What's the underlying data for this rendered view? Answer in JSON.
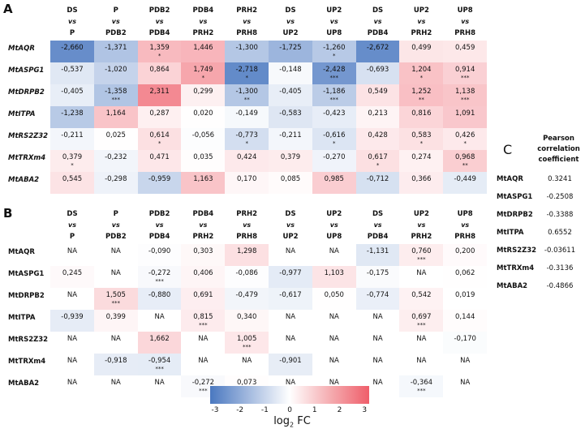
{
  "chart_data": [
    {
      "type": "heatmap",
      "panel": "A",
      "italic_rows": true,
      "columns": [
        [
          "DS",
          "vs",
          "P"
        ],
        [
          "P",
          "vs",
          "PDB2"
        ],
        [
          "PDB2",
          "vs",
          "PDB4"
        ],
        [
          "PDB4",
          "vs",
          "PRH2"
        ],
        [
          "PRH2",
          "vs",
          "PRH8"
        ],
        [
          "DS",
          "vs",
          "UP2"
        ],
        [
          "UP2",
          "vs",
          "UP8"
        ],
        [
          "DS",
          "vs",
          "PDB4"
        ],
        [
          "UP2",
          "vs",
          "PRH2"
        ],
        [
          "UP8",
          "vs",
          "PRH8"
        ]
      ],
      "rows": [
        "MtAQR",
        "MtASPG1",
        "MtDRPB2",
        "MtITPA",
        "MtRS2Z32",
        "MtTRXm4",
        "MtABA2"
      ],
      "values": [
        [
          "-2,660",
          "-1,371",
          "1,359",
          "1,446",
          "-1,300",
          "-1,725",
          "-1,260",
          "-2,672",
          "0,499",
          "0,459"
        ],
        [
          "-0,537",
          "-1,020",
          "0,864",
          "1,749",
          "-2,718",
          "-0,148",
          "-2,428",
          "-0,693",
          "1,204",
          "0,914"
        ],
        [
          "-0,405",
          "-1,358",
          "2,311",
          "0,299",
          "-1,300",
          "-0,405",
          "-1,186",
          "0,549",
          "1,252",
          "1,138"
        ],
        [
          "-1,238",
          "1,164",
          "0,287",
          "0,020",
          "-0,149",
          "-0,583",
          "-0,423",
          "0,213",
          "0,816",
          "1,091"
        ],
        [
          "-0,211",
          "0,025",
          "0,614",
          "-0,056",
          "-0,773",
          "-0,211",
          "-0,616",
          "0,428",
          "0,583",
          "0,426"
        ],
        [
          "0,379",
          "-0,232",
          "0,471",
          "0,035",
          "0,424",
          "0,379",
          "-0,270",
          "0,617",
          "0,274",
          "0,968"
        ],
        [
          "0,545",
          "-0,298",
          "-0,959",
          "1,163",
          "0,170",
          "0,085",
          "0,985",
          "-0,712",
          "0,366",
          "-0,449"
        ]
      ],
      "significance": [
        [
          "",
          "",
          "*",
          "",
          "",
          "",
          "*",
          "",
          "",
          ""
        ],
        [
          "",
          "",
          "",
          "*",
          "*",
          "",
          "***",
          "",
          "*",
          "***"
        ],
        [
          "",
          "***",
          "",
          "",
          "**",
          "",
          "***",
          "",
          "**",
          "***"
        ],
        [
          "",
          "",
          "",
          "",
          "",
          "",
          "",
          "",
          "",
          ""
        ],
        [
          "",
          "",
          "*",
          "",
          "*",
          "",
          "*",
          "",
          "*",
          "*"
        ],
        [
          "*",
          "",
          "",
          "",
          "",
          "",
          "",
          "*",
          "",
          "**"
        ],
        [
          "",
          "",
          "",
          "",
          "",
          "",
          "",
          "",
          "",
          ""
        ]
      ]
    },
    {
      "type": "heatmap",
      "panel": "B",
      "italic_rows": false,
      "columns": [
        [
          "DS",
          "vs",
          "P"
        ],
        [
          "P",
          "vs",
          "PDB2"
        ],
        [
          "PDB2",
          "vs",
          "PDB4"
        ],
        [
          "PDB4",
          "vs",
          "PRH2"
        ],
        [
          "PRH2",
          "vs",
          "PRH8"
        ],
        [
          "DS",
          "vs",
          "UP2"
        ],
        [
          "UP2",
          "vs",
          "UP8"
        ],
        [
          "DS",
          "vs",
          "PDB4"
        ],
        [
          "UP2",
          "vs",
          "PRH2"
        ],
        [
          "UP8",
          "vs",
          "PRH8"
        ]
      ],
      "rows": [
        "MtAQR",
        "MtASPG1",
        "MtDRPB2",
        "MtITPA",
        "MtRS2Z32",
        "MtTRXm4",
        "MtABA2"
      ],
      "values": [
        [
          "NA",
          "NA",
          "-0,090",
          "0,303",
          "1,298",
          "NA",
          "NA",
          "-1,131",
          "0,760",
          "0,200"
        ],
        [
          "0,245",
          "NA",
          "-0,272",
          "0,406",
          "-0,086",
          "-0,977",
          "1,103",
          "-0,175",
          "NA",
          "0,062"
        ],
        [
          "NA",
          "1,505",
          "-0,880",
          "0,691",
          "-0,479",
          "-0,617",
          "0,050",
          "-0,774",
          "0,542",
          "0,019"
        ],
        [
          "-0,939",
          "0,399",
          "NA",
          "0,815",
          "0,340",
          "NA",
          "NA",
          "NA",
          "0,697",
          "0,144"
        ],
        [
          "NA",
          "NA",
          "1,662",
          "NA",
          "1,005",
          "NA",
          "NA",
          "NA",
          "NA",
          "-0,170"
        ],
        [
          "NA",
          "-0,918",
          "-0,954",
          "NA",
          "NA",
          "-0,901",
          "NA",
          "NA",
          "NA",
          "NA"
        ],
        [
          "NA",
          "NA",
          "NA",
          "-0,272",
          "0,073",
          "NA",
          "NA",
          "NA",
          "-0,364",
          "NA"
        ]
      ],
      "significance": [
        [
          "",
          "",
          "",
          "",
          "",
          "",
          "",
          "",
          "***",
          ""
        ],
        [
          "",
          "",
          "***",
          "",
          "",
          "",
          "",
          "",
          "",
          ""
        ],
        [
          "",
          "***",
          "",
          "",
          "",
          "",
          "",
          "",
          "",
          ""
        ],
        [
          "",
          "",
          "",
          "***",
          "",
          "",
          "",
          "",
          "***",
          ""
        ],
        [
          "",
          "",
          "",
          "",
          "***",
          "",
          "",
          "",
          "",
          ""
        ],
        [
          "",
          "",
          "***",
          "",
          "",
          "",
          "",
          "",
          "",
          ""
        ],
        [
          "",
          "",
          "",
          "***",
          "",
          "",
          "",
          "",
          "***",
          ""
        ]
      ]
    },
    {
      "type": "table",
      "panel": "C",
      "header": [
        "Pearson",
        "correlation",
        "coefficient"
      ],
      "rows": [
        "MtAQR",
        "MtASPG1",
        "MtDRPB2",
        "MtITPA",
        "MtRS2Z32",
        "MtTRXm4",
        "MtABA2"
      ],
      "values": [
        "0.3241",
        "-0.2508",
        "-0.3388",
        "0.6552",
        "-0.03611",
        "-0.3136",
        "-0.4866"
      ]
    }
  ],
  "colorbar": {
    "ticks": [
      "-3",
      "-2",
      "-1",
      "0",
      "1",
      "2",
      "3"
    ],
    "label": "log",
    "label_sub": "2",
    "label_suffix": " FC",
    "range": [
      -3,
      3
    ],
    "low_color": "#4a78c0",
    "high_color": "#ef5e6a"
  }
}
